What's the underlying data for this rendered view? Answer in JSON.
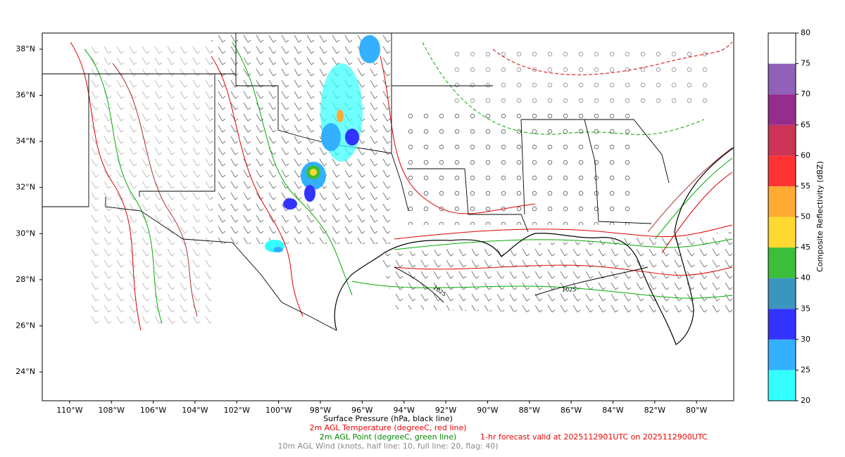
{
  "map": {
    "xlim": [
      -111.31,
      -78.22
    ],
    "ylim": [
      22.75,
      38.7
    ],
    "xticks": [
      {
        "value": -110,
        "label": "110°W"
      },
      {
        "value": -108,
        "label": "108°W"
      },
      {
        "value": -106,
        "label": "106°W"
      },
      {
        "value": -104,
        "label": "104°W"
      },
      {
        "value": -102,
        "label": "102°W"
      },
      {
        "value": -100,
        "label": "100°W"
      },
      {
        "value": -98,
        "label": "98°W"
      },
      {
        "value": -96,
        "label": "96°W"
      },
      {
        "value": -94,
        "label": "94°W"
      },
      {
        "value": -92,
        "label": "92°W"
      },
      {
        "value": -90,
        "label": "90°W"
      },
      {
        "value": -88,
        "label": "88°W"
      },
      {
        "value": -86,
        "label": "86°W"
      },
      {
        "value": -84,
        "label": "84°W"
      },
      {
        "value": -82,
        "label": "82°W"
      },
      {
        "value": -80,
        "label": "80°W"
      }
    ],
    "yticks": [
      {
        "value": 24,
        "label": "24°N"
      },
      {
        "value": 26,
        "label": "26°N"
      },
      {
        "value": 28,
        "label": "28°N"
      },
      {
        "value": 30,
        "label": "30°N"
      },
      {
        "value": 32,
        "label": "32°N"
      },
      {
        "value": 34,
        "label": "34°N"
      },
      {
        "value": 36,
        "label": "36°N"
      },
      {
        "value": 38,
        "label": "38°N"
      }
    ],
    "contour_labels": [
      "1025",
      "1025"
    ]
  },
  "colorbar": {
    "label": "Composite Reflectivity (dBZ)",
    "levels": [
      20,
      25,
      30,
      35,
      40,
      45,
      50,
      55,
      60,
      65,
      70,
      75,
      80
    ],
    "colors": [
      "#33ffff",
      "#33b0ff",
      "#3333ff",
      "#3b96bf",
      "#3bbf3b",
      "#ffd92f",
      "#ffaa33",
      "#ff3333",
      "#cc3355",
      "#962c8c",
      "#9160b8",
      "#ffffff"
    ]
  },
  "captions": {
    "pressure": "Surface Pressure (hPa, black line)",
    "temperature": "2m AGL Temperature (degreeC, red line)",
    "dewpoint": "2m AGL Point (degreeC, green line)",
    "forecast": "1-hr forecast valid at 2025112901UTC on 2025112900UTC",
    "wind": "10m AGL Wind (knots, half line: 10, full line: 20, flag: 40)"
  }
}
